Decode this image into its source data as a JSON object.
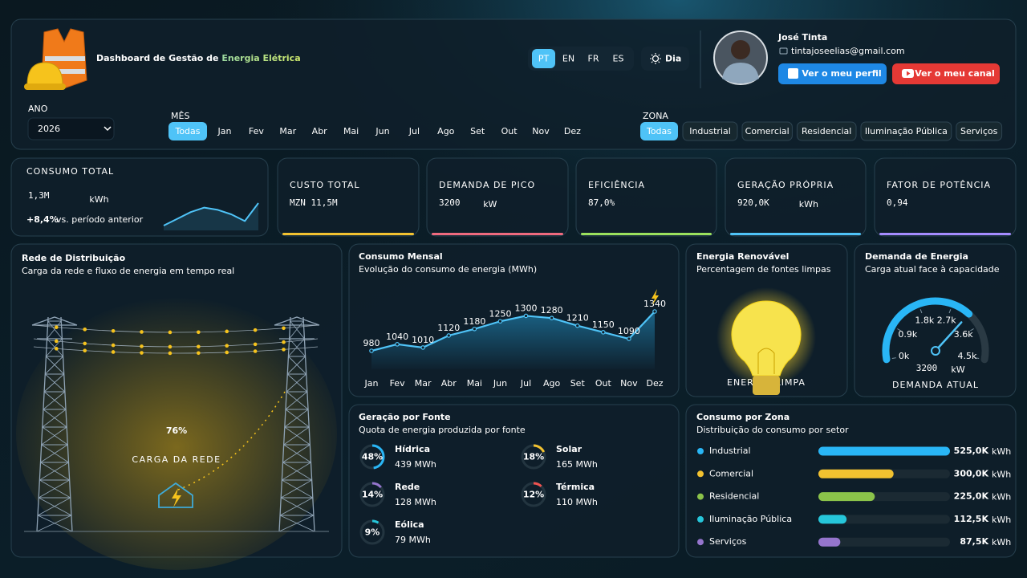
{
  "header": {
    "title": "Dashboard de Gestão de ",
    "title_highlight": "Energia Elétrica",
    "languages": [
      "PT",
      "EN",
      "FR",
      "ES"
    ],
    "selected_language": 0,
    "theme_button": "Dia"
  },
  "user": {
    "name": "José Tinta",
    "email": "tintajoseelias@gmail.com",
    "profile_button": "Ver o meu perfil",
    "channel_button": "Ver o meu canal"
  },
  "filters": {
    "year_label": "ANO",
    "year": "2026",
    "month_label": "MÊS",
    "months": [
      "Todas",
      "Jan",
      "Fev",
      "Mar",
      "Abr",
      "Mai",
      "Jun",
      "Jul",
      "Ago",
      "Set",
      "Out",
      "Nov",
      "Dez"
    ],
    "selected_month": 0,
    "zone_label": "ZONA",
    "zones": [
      "Todas",
      "Industrial",
      "Comercial",
      "Residencial",
      "Iluminação Pública",
      "Serviços"
    ],
    "selected_zone": 0
  },
  "kpis": [
    {
      "label": "CONSUMO TOTAL",
      "value": "1,3M",
      "unit": "kWh",
      "color": "#4fc3f7",
      "change": "+8,4%",
      "change_text": "vs. período anterior",
      "sparkline": [
        2,
        5,
        8,
        10,
        9,
        7,
        4,
        12
      ]
    },
    {
      "label": "CUSTO TOTAL",
      "value": "MZN 11,5M",
      "color": "#f2c230"
    },
    {
      "label": "DEMANDA DE PICO",
      "value": "3200",
      "unit": "kW",
      "color": "#ef6a7e"
    },
    {
      "label": "EFICIÊNCIA",
      "value": "87,0%",
      "color": "#9be15d"
    },
    {
      "label": "GERAÇÃO PRÓPRIA",
      "value": "920,0K",
      "unit": "kWh",
      "color": "#4fc3f7"
    },
    {
      "label": "FATOR DE POTÊNCIA",
      "value": "0,94",
      "color": "#a58cff"
    }
  ],
  "distribution": {
    "title": "Rede de Distribuição",
    "subtitle": "Carga da rede e fluxo de energia em tempo real",
    "load": "76%",
    "load_caption": "CARGA DA REDE"
  },
  "monthly": {
    "type": "line",
    "title": "Consumo Mensal",
    "subtitle": "Evolução do consumo de energia (MWh)",
    "categories": [
      "Jan",
      "Fev",
      "Mar",
      "Abr",
      "Mai",
      "Jun",
      "Jul",
      "Ago",
      "Set",
      "Out",
      "Nov",
      "Dez"
    ],
    "values": [
      980,
      1040,
      1010,
      1120,
      1180,
      1250,
      1300,
      1280,
      1210,
      1150,
      1090,
      1340
    ],
    "color": "#4fc3f7"
  },
  "renewable": {
    "title": "Energia Renovável",
    "subtitle": "Percentagem de fontes limpas",
    "caption": "ENERGIA LIMPA"
  },
  "demand": {
    "type": "gauge",
    "title": "Demanda de Energia",
    "subtitle": "Carga atual face à capacidade",
    "value": 3200,
    "unit": "kW",
    "caption": "DEMANDA ATUAL",
    "range": [
      0,
      4500
    ],
    "ticks": [
      {
        "value": 0,
        "label": "0k"
      },
      {
        "value": 900,
        "label": "0.9k"
      },
      {
        "value": 1800,
        "label": "1.8k"
      },
      {
        "value": 2700,
        "label": "2.7k"
      },
      {
        "value": 3600,
        "label": "3.6k"
      },
      {
        "value": 4500,
        "label": "4.5k"
      }
    ],
    "color": "#29b6f6"
  },
  "generation": {
    "title": "Geração por Fonte",
    "subtitle": "Quota de energia produzida por fonte",
    "sources": [
      {
        "name": "Hídrica",
        "value": 48,
        "value_label": "48%",
        "energy": "439 MWh",
        "color": "#29b6f6"
      },
      {
        "name": "Solar",
        "value": 18,
        "value_label": "18%",
        "energy": "165 MWh",
        "color": "#f2c230"
      },
      {
        "name": "Rede",
        "value": 14,
        "value_label": "14%",
        "energy": "128 MWh",
        "color": "#9575cd"
      },
      {
        "name": "Térmica",
        "value": 12,
        "value_label": "12%",
        "energy": "110 MWh",
        "color": "#ef5350"
      },
      {
        "name": "Eólica",
        "value": 9,
        "value_label": "9%",
        "energy": "79 MWh",
        "color": "#26c6da"
      }
    ]
  },
  "zones": {
    "type": "bar",
    "title": "Consumo por Zona",
    "subtitle": "Distribuição do consumo por setor",
    "unit": "kWh",
    "categories": [
      "Industrial",
      "Comercial",
      "Residencial",
      "Iluminação Pública",
      "Serviços"
    ],
    "values": [
      525000,
      300000,
      225000,
      112500,
      87500
    ],
    "value_labels": [
      "525,0K",
      "300,0K",
      "225,0K",
      "112,5K",
      "87,5K"
    ],
    "colors": [
      "#29b6f6",
      "#f2c230",
      "#8bc34a",
      "#26c6da",
      "#9575cd"
    ]
  }
}
